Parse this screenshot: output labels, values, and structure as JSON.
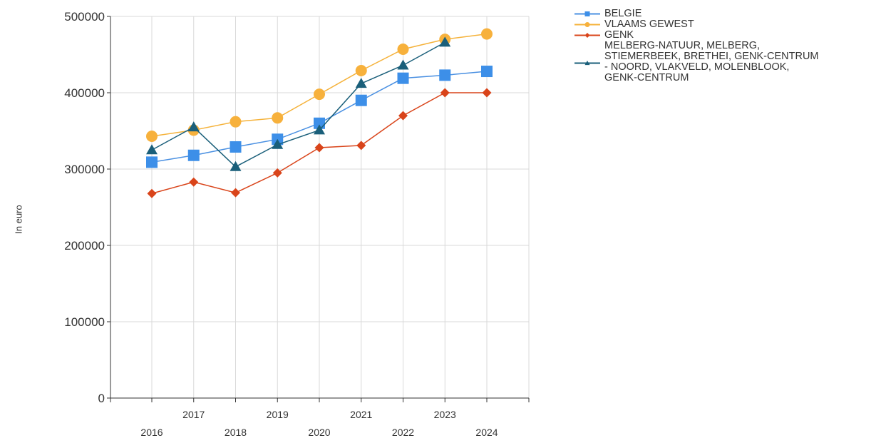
{
  "chart_data": {
    "type": "line",
    "title": "",
    "xlabel": "",
    "ylabel": "In euro",
    "ylim": [
      0,
      500000
    ],
    "yticks": [
      "0",
      "100000",
      "200000",
      "300000",
      "400000",
      "500000"
    ],
    "x": [
      "2016",
      "2017",
      "2018",
      "2019",
      "2020",
      "2021",
      "2022",
      "2023",
      "2024"
    ],
    "grid": true,
    "legend_position": "top-right",
    "series": [
      {
        "name": "BELGIE",
        "color": "#3d8fe8",
        "line_color": "#4a90e2",
        "marker": "square",
        "values": [
          309000,
          318000,
          329000,
          339000,
          360000,
          390000,
          419000,
          423000,
          428000
        ]
      },
      {
        "name": "VLAAMS GEWEST",
        "color": "#f7b13c",
        "line_color": "#f5b23a",
        "marker": "circle",
        "values": [
          343000,
          351000,
          362000,
          367000,
          398000,
          429000,
          457000,
          470000,
          477000
        ]
      },
      {
        "name": "GENK",
        "color": "#d9441a",
        "line_color": "#d9441a",
        "marker": "diamond",
        "values": [
          268000,
          283000,
          269000,
          295000,
          328000,
          331000,
          370000,
          400000,
          400000
        ]
      },
      {
        "name": "MELBERG-NATUUR, MELBERG,\nSTIEMERBEEK, BRETHEI, GENK-CENTRUM\n- NOORD, VLAKVELD, MOLENBLOOK,\nGENK-CENTRUM",
        "color": "#1a5f7a",
        "line_color": "#1a5f7a",
        "marker": "triangle",
        "values": [
          325000,
          355000,
          303000,
          332000,
          351000,
          412000,
          436000,
          466000,
          null
        ]
      }
    ]
  }
}
